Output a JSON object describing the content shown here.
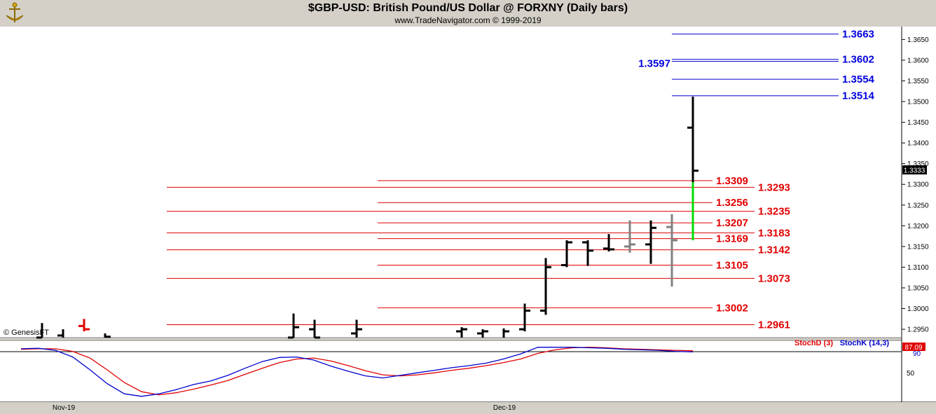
{
  "header": {
    "title": "$GBP-USD:  British Pound/US Dollar @ FORXNY  (Daily bars)",
    "subtitle": "www.TradeNavigator.com © 1999-2019"
  },
  "chart_data": {
    "type": "ohlc",
    "price_axis": {
      "ylim": [
        1.2925,
        1.3685
      ],
      "tick_values": [
        1.295,
        1.3,
        1.305,
        1.31,
        1.315,
        1.32,
        1.325,
        1.33,
        1.335,
        1.34,
        1.345,
        1.35,
        1.355,
        1.36,
        1.365
      ],
      "tick_labels": [
        "1.2950",
        "1.3000",
        "1.3050",
        "1.3100",
        "1.3150",
        "1.3200",
        "1.3250",
        "1.3300",
        "1.3350",
        "1.3400",
        "1.3450",
        "1.3500",
        "1.3550",
        "1.3600",
        "1.3650"
      ],
      "last_price_label": "1.3333",
      "last_price": 1.3333
    },
    "x_labels": [
      "Nov-19",
      "Dec-19"
    ],
    "bars": [
      {
        "h": 1.2965,
        "l": 1.2905,
        "o": 1.293,
        "c": 1.2915,
        "color": "#000000"
      },
      {
        "h": 1.295,
        "l": 1.29,
        "o": 1.2935,
        "c": 1.292,
        "color": "#000000"
      },
      {
        "h": 1.2975,
        "l": 1.2945,
        "o": 1.2958,
        "c": 1.295,
        "color": "#e00000"
      },
      {
        "h": 1.294,
        "l": 1.292,
        "o": 1.2928,
        "c": 1.2932,
        "color": "#000000"
      },
      {
        "h": 1.2988,
        "l": 1.291,
        "o": 1.293,
        "c": 1.2955,
        "color": "#000000"
      },
      {
        "h": 1.2973,
        "l": 1.2905,
        "o": 1.295,
        "c": 1.293,
        "color": "#000000"
      },
      {
        "h": 1.2973,
        "l": 1.291,
        "o": 1.294,
        "c": 1.295,
        "color": "#000000"
      },
      {
        "h": 1.2955,
        "l": 1.293,
        "o": 1.2945,
        "c": 1.295,
        "color": "#000000"
      },
      {
        "h": 1.295,
        "l": 1.2915,
        "o": 1.294,
        "c": 1.2945,
        "color": "#000000"
      },
      {
        "h": 1.2952,
        "l": 1.2905,
        "o": 1.2925,
        "c": 1.2945,
        "color": "#000000"
      },
      {
        "h": 1.3012,
        "l": 1.2945,
        "o": 1.295,
        "c": 1.2995,
        "color": "#000000"
      },
      {
        "h": 1.3122,
        "l": 1.2985,
        "o": 1.2995,
        "c": 1.31,
        "color": "#000000"
      },
      {
        "h": 1.3165,
        "l": 1.31,
        "o": 1.3105,
        "c": 1.316,
        "color": "#000000"
      },
      {
        "h": 1.3165,
        "l": 1.3103,
        "o": 1.316,
        "c": 1.314,
        "color": "#000000"
      },
      {
        "h": 1.318,
        "l": 1.3138,
        "o": 1.3145,
        "c": 1.3143,
        "color": "#000000"
      },
      {
        "h": 1.3213,
        "l": 1.3135,
        "o": 1.315,
        "c": 1.3155,
        "color": "#808080"
      },
      {
        "h": 1.3213,
        "l": 1.3108,
        "o": 1.3155,
        "c": 1.3195,
        "color": "#000000"
      },
      {
        "h": 1.3228,
        "l": 1.3053,
        "o": 1.3197,
        "c": 1.3165,
        "color": "#808080"
      },
      {
        "h": 1.3512,
        "l": 1.3165,
        "o": 1.3437,
        "c": 1.3333,
        "color": "#000000",
        "low_segment_color": "#00dd00",
        "low_segment_top": 1.3305
      }
    ],
    "levels_red": [
      {
        "value": 1.3309,
        "label": "1.3309",
        "side": "inner"
      },
      {
        "value": 1.3293,
        "label": "1.3293",
        "side": "outer"
      },
      {
        "value": 1.3256,
        "label": "1.3256",
        "side": "inner"
      },
      {
        "value": 1.3235,
        "label": "1.3235",
        "side": "outer"
      },
      {
        "value": 1.3207,
        "label": "1.3207",
        "side": "inner"
      },
      {
        "value": 1.3183,
        "label": "1.3183",
        "side": "outer"
      },
      {
        "value": 1.3169,
        "label": "1.3169",
        "side": "inner"
      },
      {
        "value": 1.3142,
        "label": "1.3142",
        "side": "outer"
      },
      {
        "value": 1.3105,
        "label": "1.3105",
        "side": "inner"
      },
      {
        "value": 1.3073,
        "label": "1.3073",
        "side": "outer"
      },
      {
        "value": 1.3002,
        "label": "1.3002",
        "side": "inner"
      },
      {
        "value": 1.2961,
        "label": "1.2961",
        "side": "outer"
      }
    ],
    "levels_blue": [
      {
        "value": 1.3663,
        "label": "1.3663",
        "side": "right"
      },
      {
        "value": 1.3602,
        "label": "1.3602",
        "side": "right"
      },
      {
        "value": 1.3597,
        "label": "1.3597",
        "side": "left"
      },
      {
        "value": 1.3554,
        "label": "1.3554",
        "side": "right"
      },
      {
        "value": 1.3514,
        "label": "1.3514",
        "side": "right"
      }
    ],
    "stoch_pane": {
      "legend": [
        {
          "name": "StochD (3)",
          "color": "#e00000"
        },
        {
          "name": "StochK (14,3)",
          "color": "#0000cc"
        }
      ],
      "tick_labels": [
        "90",
        "50"
      ],
      "last_value_label": "87.09",
      "k_values": [
        96,
        97,
        93,
        80,
        55,
        28,
        8,
        3,
        8,
        16,
        26,
        33,
        44,
        58,
        71,
        79,
        80,
        74,
        62,
        52,
        43,
        39,
        44,
        49,
        54,
        59,
        63,
        68,
        76,
        86,
        99,
        99,
        99,
        98,
        97,
        95,
        94,
        93,
        91,
        90
      ],
      "d_values": [
        95,
        96,
        96,
        91,
        78,
        55,
        30,
        12,
        6,
        10,
        17,
        25,
        34,
        46,
        58,
        69,
        76,
        78,
        72,
        63,
        53,
        45,
        43,
        45,
        49,
        54,
        58,
        63,
        69,
        76,
        87,
        94,
        98,
        99,
        98,
        96,
        95,
        94,
        93,
        92
      ]
    },
    "copyright": "© GenesisFT"
  }
}
